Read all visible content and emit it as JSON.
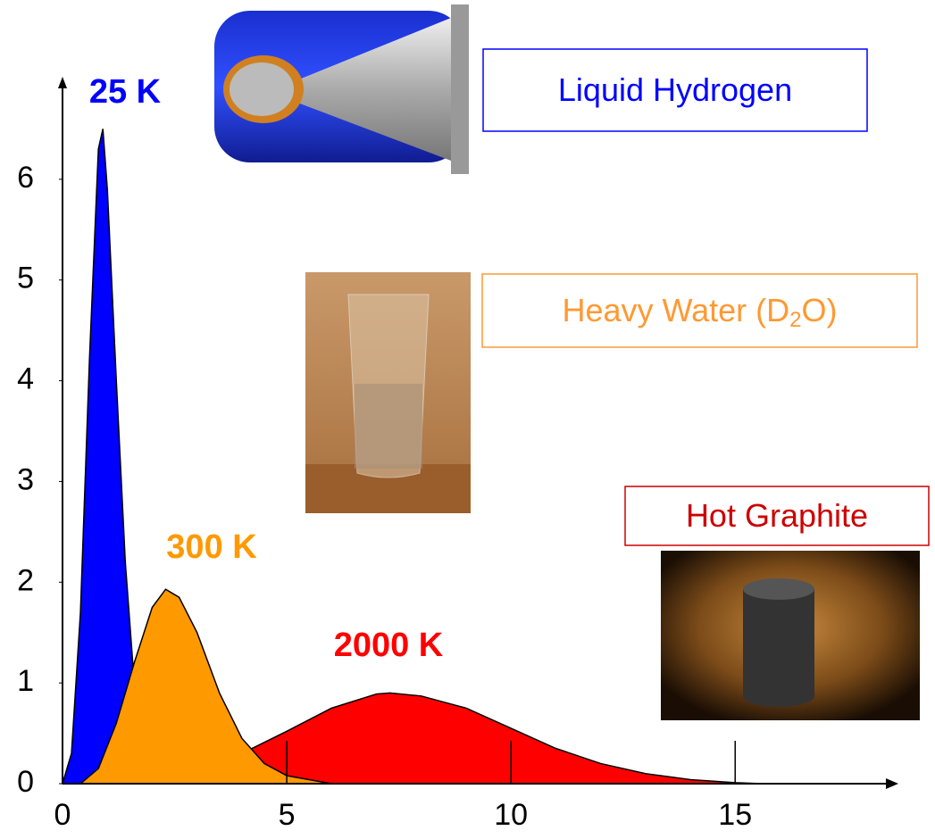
{
  "chart_data": {
    "type": "area",
    "xlim": [
      0,
      18.6
    ],
    "ylim": [
      0,
      7
    ],
    "xticks": [
      0,
      5,
      10,
      15
    ],
    "yticks": [
      0,
      1,
      2,
      3,
      4,
      5,
      6
    ],
    "series": [
      {
        "name": "2000 K",
        "color": "#ff0000",
        "x": [
          1.2,
          2,
          3,
          4,
          5,
          6,
          7,
          7.3,
          8,
          9,
          10,
          11,
          12,
          13,
          14,
          15,
          15.6
        ],
        "values": [
          0,
          0.03,
          0.12,
          0.3,
          0.52,
          0.75,
          0.89,
          0.9,
          0.87,
          0.75,
          0.55,
          0.35,
          0.2,
          0.1,
          0.04,
          0.01,
          0
        ]
      },
      {
        "name": "25 K",
        "color": "#0000ff",
        "x": [
          0,
          0.2,
          0.4,
          0.6,
          0.8,
          0.9,
          1.0,
          1.2,
          1.4,
          1.6,
          1.8,
          2.0,
          2.4,
          3
        ],
        "values": [
          0,
          0.3,
          1.7,
          4.2,
          6.3,
          6.5,
          5.9,
          4.0,
          2.2,
          1.0,
          0.4,
          0.15,
          0.02,
          0
        ]
      },
      {
        "name": "300 K",
        "color": "#ff9900",
        "x": [
          0.4,
          0.8,
          1.2,
          1.6,
          2.0,
          2.3,
          2.6,
          3.0,
          3.5,
          4.0,
          4.5,
          5,
          6
        ],
        "values": [
          0,
          0.15,
          0.6,
          1.2,
          1.75,
          1.93,
          1.85,
          1.5,
          0.9,
          0.45,
          0.2,
          0.08,
          0
        ]
      }
    ],
    "boxes": [
      {
        "text": "Liquid Hydrogen",
        "color": "#0000ff"
      },
      {
        "text": "Heavy Water (D",
        "sub": "2",
        "tail": "O)",
        "color": "#ff9933"
      },
      {
        "text": "Hot Graphite",
        "color": "#cc0000"
      }
    ]
  }
}
